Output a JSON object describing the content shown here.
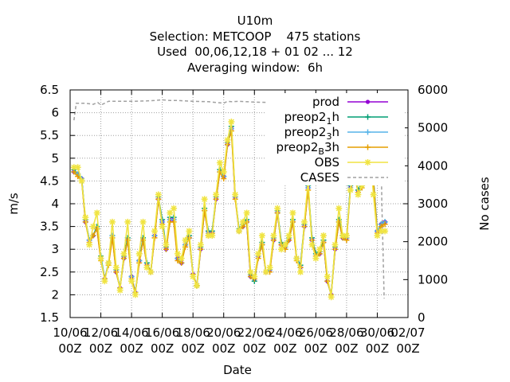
{
  "chart_data": {
    "type": "line",
    "title_lines": [
      "U10m",
      "Selection: METCOOP    475 stations",
      "Used  00,06,12,18 + 01 02 ... 12",
      "Averaging window:  6h"
    ],
    "xlabel": "Date",
    "ylabel": "m/s",
    "y2label": "No cases",
    "ylim": [
      1.5,
      6.5
    ],
    "y2lim": [
      0,
      6000
    ],
    "yticks": [
      "1.5",
      "2",
      "2.5",
      "3",
      "3.5",
      "4",
      "4.5",
      "5",
      "5.5",
      "6",
      "6.5"
    ],
    "y2ticks": [
      "0",
      "1000",
      "2000",
      "3000",
      "4000",
      "5000",
      "6000"
    ],
    "xticks": [
      {
        "day": 10,
        "line1": "10/06",
        "line2": "00Z"
      },
      {
        "day": 12,
        "line1": "12/06",
        "line2": "00Z"
      },
      {
        "day": 14,
        "line1": "14/06",
        "line2": "00Z"
      },
      {
        "day": 16,
        "line1": "16/06",
        "line2": "00Z"
      },
      {
        "day": 18,
        "line1": "18/06",
        "line2": "00Z"
      },
      {
        "day": 20,
        "line1": "20/06",
        "line2": "00Z"
      },
      {
        "day": 22,
        "line1": "22/06",
        "line2": "00Z"
      },
      {
        "day": 24,
        "line1": "24/06",
        "line2": "00Z"
      },
      {
        "day": 26,
        "line1": "26/06",
        "line2": "00Z"
      },
      {
        "day": 28,
        "line1": "28/06",
        "line2": "00Z"
      },
      {
        "day": 30,
        "line1": "30/06",
        "line2": "00Z"
      },
      {
        "day": 32,
        "line1": "02/07",
        "line2": "00Z"
      }
    ],
    "grid": true,
    "legend_position": "top-right",
    "legend": [
      {
        "label": "prod",
        "sub": "",
        "after": "",
        "color": "#9400d3",
        "marker": "dot",
        "dashed": false
      },
      {
        "label": "preop2",
        "sub": "1",
        "after": "h",
        "color": "#009e73",
        "marker": "plus",
        "dashed": false
      },
      {
        "label": "preop2",
        "sub": "3",
        "after": "h",
        "color": "#56b4e9",
        "marker": "plus",
        "dashed": false
      },
      {
        "label": "preop2",
        "sub": "B",
        "after": "3h",
        "color": "#e69f00",
        "marker": "plus",
        "dashed": false
      },
      {
        "label": "OBS",
        "sub": "",
        "after": "",
        "color": "#f0e442",
        "marker": "star",
        "dashed": false
      },
      {
        "label": "CASES",
        "sub": "",
        "after": "",
        "color": "#a0a0a0",
        "marker": "none",
        "dashed": true
      }
    ],
    "x_days": [
      10.25,
      10.5,
      10.75,
      11.0,
      11.25,
      11.5,
      11.75,
      12.0,
      12.25,
      12.5,
      12.75,
      13.0,
      13.25,
      13.5,
      13.75,
      14.0,
      14.25,
      14.5,
      14.75,
      15.0,
      15.25,
      15.5,
      15.75,
      16.0,
      16.25,
      16.5,
      16.75,
      17.0,
      17.25,
      17.5,
      17.75,
      18.0,
      18.25,
      18.5,
      18.75,
      19.0,
      19.25,
      19.5,
      19.75,
      20.0,
      20.25,
      20.5,
      20.75,
      21.0,
      21.25,
      21.5,
      21.75,
      22.0,
      22.25,
      22.5,
      22.75,
      23.0,
      23.25,
      23.5,
      23.75,
      24.0,
      24.25,
      24.5,
      24.75,
      25.0,
      25.25,
      25.5,
      25.75,
      26.0,
      26.25,
      26.5,
      26.75,
      27.0,
      27.25,
      27.5,
      27.75,
      28.0,
      28.25,
      28.5,
      28.75,
      29.0,
      29.25,
      29.5,
      29.75,
      30.0,
      30.25,
      30.5
    ],
    "series": [
      {
        "name": "prod",
        "values": [
          4.7,
          4.65,
          4.55,
          3.6,
          3.2,
          3.3,
          3.45,
          2.8,
          2.35,
          2.7,
          3.3,
          2.5,
          2.15,
          2.8,
          3.2,
          2.4,
          2.05,
          2.75,
          3.2,
          2.65,
          2.5,
          3.3,
          4.1,
          3.6,
          3.0,
          3.65,
          3.65,
          2.8,
          2.7,
          3.1,
          3.25,
          2.45,
          2.2,
          3.0,
          3.85,
          3.35,
          3.35,
          4.1,
          4.7,
          4.6,
          5.3,
          5.65,
          4.15,
          3.4,
          3.5,
          3.6,
          2.4,
          2.35,
          2.85,
          3.1,
          2.5,
          2.55,
          3.2,
          3.8,
          3.1,
          3.05,
          3.2,
          3.6,
          2.8,
          2.6,
          3.5,
          4.35,
          3.2,
          2.85,
          2.9,
          3.15,
          2.3,
          2.0,
          3.0,
          3.6,
          3.25,
          3.25,
          4.35,
          4.7,
          4.25,
          4.4,
          5.5,
          5.2,
          4.5,
          3.4,
          3.55,
          3.6
        ]
      },
      {
        "name": "preop2 1h",
        "values": [
          4.75,
          4.65,
          4.55,
          3.65,
          3.2,
          3.3,
          3.5,
          2.85,
          2.35,
          2.7,
          3.3,
          2.55,
          2.15,
          2.85,
          3.25,
          2.4,
          2.05,
          2.75,
          3.25,
          2.7,
          2.5,
          3.3,
          4.15,
          3.65,
          3.05,
          3.7,
          3.7,
          2.8,
          2.7,
          3.1,
          3.3,
          2.45,
          2.2,
          3.05,
          3.9,
          3.4,
          3.4,
          4.15,
          4.75,
          4.6,
          5.35,
          5.7,
          4.15,
          3.45,
          3.55,
          3.65,
          2.45,
          2.3,
          2.85,
          3.15,
          2.5,
          2.55,
          3.25,
          3.85,
          3.15,
          3.05,
          3.25,
          3.65,
          2.8,
          2.65,
          3.55,
          4.4,
          3.25,
          2.9,
          2.95,
          3.2,
          2.3,
          2.0,
          3.05,
          3.65,
          3.3,
          3.25,
          4.4,
          4.75,
          4.3,
          4.45,
          5.55,
          5.25,
          4.55,
          3.4,
          3.55,
          3.6
        ]
      },
      {
        "name": "preop2 3h",
        "values": [
          4.7,
          4.65,
          4.55,
          3.6,
          3.2,
          3.3,
          3.45,
          2.8,
          2.35,
          2.7,
          3.3,
          2.5,
          2.15,
          2.8,
          3.2,
          2.4,
          2.05,
          2.75,
          3.2,
          2.65,
          2.5,
          3.3,
          4.1,
          3.6,
          3.0,
          3.65,
          3.65,
          2.8,
          2.7,
          3.1,
          3.25,
          2.45,
          2.2,
          3.0,
          3.85,
          3.35,
          3.35,
          4.1,
          4.7,
          4.6,
          5.3,
          5.65,
          4.15,
          3.4,
          3.5,
          3.6,
          2.4,
          2.35,
          2.85,
          3.1,
          2.5,
          2.55,
          3.2,
          3.8,
          3.1,
          3.05,
          3.2,
          3.6,
          2.8,
          2.6,
          3.5,
          4.35,
          3.2,
          2.85,
          2.9,
          3.15,
          2.3,
          2.0,
          3.0,
          3.6,
          3.25,
          3.25,
          4.35,
          4.7,
          4.25,
          4.4,
          5.5,
          5.2,
          4.5,
          3.4,
          3.55,
          3.6
        ]
      },
      {
        "name": "preop2 B 3h",
        "values": [
          4.7,
          4.6,
          4.5,
          3.6,
          3.15,
          3.3,
          3.45,
          2.75,
          2.35,
          2.65,
          3.25,
          2.5,
          2.15,
          2.8,
          3.2,
          2.35,
          2.05,
          2.7,
          3.2,
          2.65,
          2.5,
          3.25,
          4.1,
          3.55,
          3.0,
          3.6,
          3.6,
          2.75,
          2.7,
          3.05,
          3.25,
          2.45,
          2.2,
          3.0,
          3.85,
          3.3,
          3.35,
          4.1,
          4.7,
          4.55,
          5.3,
          5.6,
          4.1,
          3.4,
          3.5,
          3.6,
          2.4,
          2.35,
          2.8,
          3.1,
          2.5,
          2.5,
          3.2,
          3.8,
          3.1,
          3.0,
          3.2,
          3.6,
          2.75,
          2.6,
          3.5,
          4.3,
          3.2,
          2.85,
          2.9,
          3.15,
          2.3,
          2.0,
          3.0,
          3.6,
          3.25,
          3.2,
          4.3,
          4.65,
          4.25,
          4.35,
          5.45,
          5.2,
          4.5,
          3.35,
          3.5,
          3.55
        ]
      },
      {
        "name": "OBS",
        "values": [
          4.8,
          4.8,
          4.5,
          3.7,
          3.1,
          3.5,
          3.8,
          2.8,
          2.3,
          2.7,
          3.6,
          2.6,
          2.1,
          2.9,
          3.6,
          2.3,
          2.0,
          2.9,
          3.6,
          2.6,
          2.5,
          3.4,
          4.2,
          3.5,
          3.1,
          3.8,
          3.9,
          2.9,
          2.8,
          3.2,
          3.4,
          2.4,
          2.2,
          3.1,
          4.1,
          3.3,
          3.3,
          4.2,
          4.9,
          4.7,
          5.4,
          5.8,
          4.2,
          3.4,
          3.6,
          3.8,
          2.5,
          2.4,
          2.9,
          3.3,
          2.5,
          2.6,
          3.3,
          3.9,
          3.0,
          3.1,
          3.3,
          3.8,
          2.8,
          2.5,
          3.6,
          4.5,
          3.1,
          2.8,
          3.0,
          3.3,
          2.4,
          1.95,
          3.1,
          3.9,
          3.3,
          3.3,
          4.3,
          4.9,
          4.2,
          4.4,
          5.5,
          5.3,
          4.2,
          3.3,
          3.4,
          3.4
        ]
      }
    ],
    "cases": {
      "x_days": [
        10.25,
        10.4,
        10.6,
        11.0,
        11.5,
        11.8,
        12.0,
        12.25,
        12.5,
        13.0,
        14.0,
        15.0,
        15.5,
        16.0,
        16.5,
        17.0,
        18.0,
        19.0,
        20.0,
        20.25,
        20.5,
        21.0,
        22.0,
        23.0,
        23.75,
        24.0,
        25.0,
        26.0,
        27.0,
        28.0,
        29.0,
        29.5,
        30.0,
        30.2,
        30.3,
        30.45
      ],
      "values": [
        5200,
        5650,
        5650,
        5650,
        5620,
        5670,
        5600,
        5650,
        5700,
        5700,
        5700,
        5710,
        5720,
        5740,
        5720,
        5720,
        5700,
        5690,
        5650,
        5700,
        5690,
        5700,
        5680,
        5670,
        5680,
        5620,
        5660,
        5670,
        5680,
        5680,
        5700,
        5700,
        5680,
        5500,
        3000,
        500
      ]
    }
  }
}
